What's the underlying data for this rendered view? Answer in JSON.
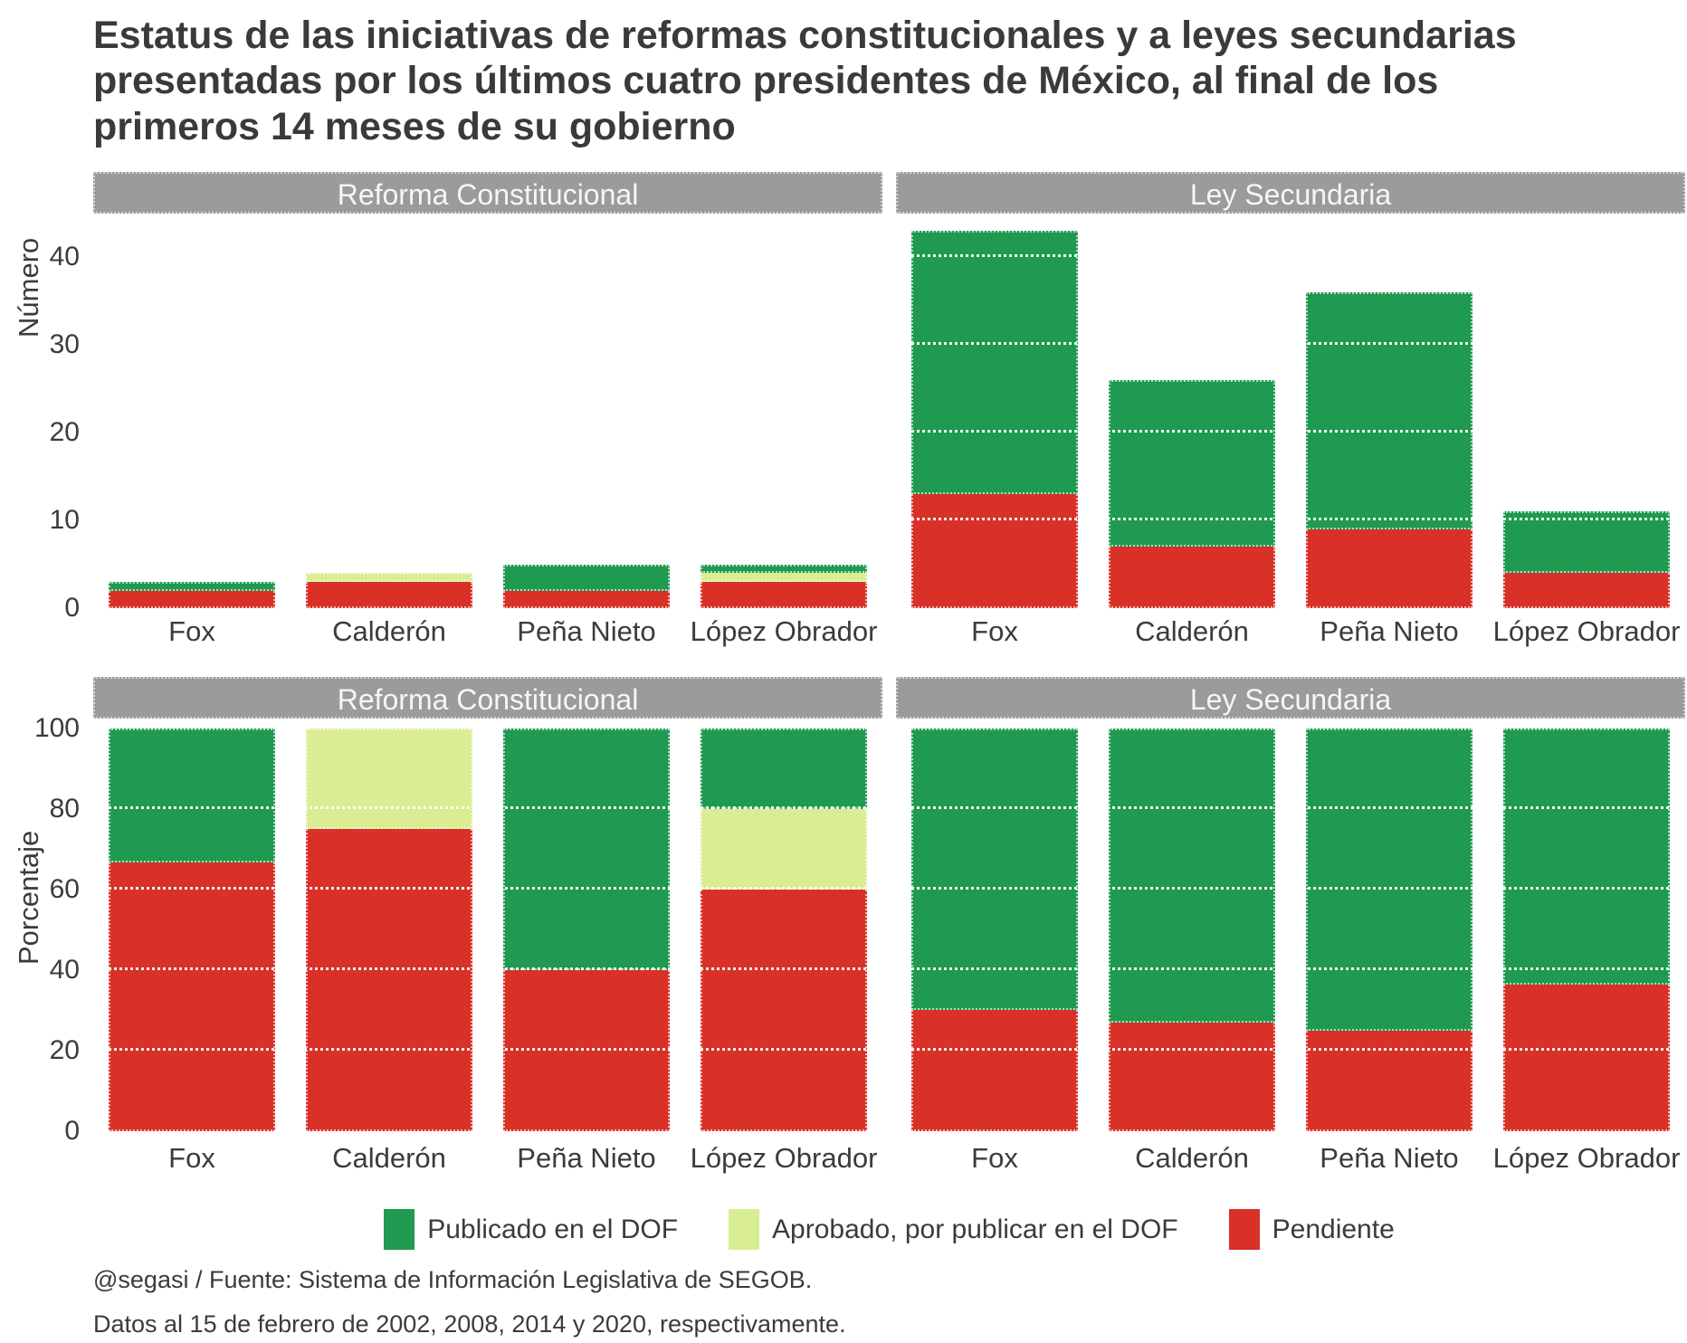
{
  "title": "Estatus de las iniciativas de reformas constitucionales y a leyes secundarias presentadas por los últimos cuatro presidentes de México, al final de los primeros 14 meses de su gobierno",
  "colors": {
    "publicado": "#1f9a50",
    "aprobado": "#d9ed92",
    "pendiente": "#d93128",
    "strip_bg": "#9b9b9b",
    "strip_text": "#f6f6f6",
    "text": "#3b3b3b"
  },
  "presidents": [
    "Fox",
    "Calderón",
    "Peña Nieto",
    "López Obrador"
  ],
  "legend": [
    {
      "key": "publicado",
      "label": "Publicado en el DOF"
    },
    {
      "key": "aprobado",
      "label": "Aprobado, por publicar en el DOF"
    },
    {
      "key": "pendiente",
      "label": "Pendiente"
    }
  ],
  "captions": [
    "@segasi / Fuente: Sistema de Información Legislativa de SEGOB.",
    "Datos al 15 de febrero de 2002, 2008, 2014 y 2020, respectivamente."
  ],
  "chart_data": [
    {
      "type": "bar",
      "stacked": true,
      "ylabel": "Número",
      "ylim": [
        0,
        45
      ],
      "yticks": [
        0,
        10,
        20,
        30,
        40
      ],
      "grid": "dotted-white-over-bars",
      "legend_position": "bottom",
      "categories": [
        "Fox",
        "Calderón",
        "Peña Nieto",
        "López Obrador"
      ],
      "facets": [
        {
          "label": "Reforma Constitucional",
          "series": [
            {
              "key": "pendiente",
              "name": "Pendiente",
              "values": [
                2,
                3,
                2,
                3
              ]
            },
            {
              "key": "aprobado",
              "name": "Aprobado, por publicar en el DOF",
              "values": [
                0,
                1,
                0,
                1
              ]
            },
            {
              "key": "publicado",
              "name": "Publicado en el DOF",
              "values": [
                1,
                0,
                3,
                1
              ]
            }
          ]
        },
        {
          "label": "Ley Secundaria",
          "series": [
            {
              "key": "pendiente",
              "name": "Pendiente",
              "values": [
                13,
                7,
                9,
                4
              ]
            },
            {
              "key": "aprobado",
              "name": "Aprobado, por publicar en el DOF",
              "values": [
                0,
                0,
                0,
                0
              ]
            },
            {
              "key": "publicado",
              "name": "Publicado en el DOF",
              "values": [
                30,
                19,
                27,
                7
              ]
            }
          ]
        }
      ]
    },
    {
      "type": "bar",
      "stacked": true,
      "ylabel": "Porcentaje",
      "ylim": [
        0,
        100
      ],
      "yticks": [
        0,
        20,
        40,
        60,
        80,
        100
      ],
      "grid": "dotted-white-over-bars",
      "legend_position": "bottom",
      "categories": [
        "Fox",
        "Calderón",
        "Peña Nieto",
        "López Obrador"
      ],
      "facets": [
        {
          "label": "Reforma Constitucional",
          "series": [
            {
              "key": "pendiente",
              "name": "Pendiente",
              "values": [
                66.7,
                75,
                40,
                60
              ]
            },
            {
              "key": "aprobado",
              "name": "Aprobado, por publicar en el DOF",
              "values": [
                0,
                25,
                0,
                20
              ]
            },
            {
              "key": "publicado",
              "name": "Publicado en el DOF",
              "values": [
                33.3,
                0,
                60,
                20
              ]
            }
          ]
        },
        {
          "label": "Ley Secundaria",
          "series": [
            {
              "key": "pendiente",
              "name": "Pendiente",
              "values": [
                30.2,
                26.9,
                25,
                36.4
              ]
            },
            {
              "key": "aprobado",
              "name": "Aprobado, por publicar en el DOF",
              "values": [
                0,
                0,
                0,
                0
              ]
            },
            {
              "key": "publicado",
              "name": "Publicado en el DOF",
              "values": [
                69.8,
                73.1,
                75,
                63.6
              ]
            }
          ]
        }
      ]
    }
  ]
}
